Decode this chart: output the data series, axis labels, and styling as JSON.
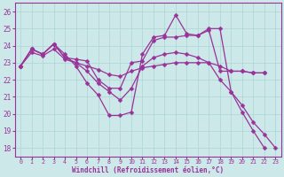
{
  "xlabel": "Windchill (Refroidissement éolien,°C)",
  "xlim": [
    -0.5,
    23.5
  ],
  "ylim": [
    17.5,
    26.5
  ],
  "xticks": [
    0,
    1,
    2,
    3,
    4,
    5,
    6,
    7,
    8,
    9,
    10,
    11,
    12,
    13,
    14,
    15,
    16,
    17,
    18,
    19,
    20,
    21,
    22,
    23
  ],
  "yticks": [
    18,
    19,
    20,
    21,
    22,
    23,
    24,
    25,
    26
  ],
  "bg_color": "#cce8e8",
  "grid_color": "#aad4d4",
  "line_color": "#993399",
  "marker": "D",
  "markersize": 2.5,
  "linewidth": 0.9,
  "series": [
    [
      22.8,
      23.8,
      23.5,
      24.1,
      23.5,
      22.8,
      21.8,
      21.1,
      19.9,
      19.9,
      20.1,
      23.5,
      24.5,
      24.6,
      25.8,
      24.7,
      24.6,
      25.0,
      25.0,
      21.3,
      20.1,
      19.0,
      18.0,
      null
    ],
    [
      22.8,
      23.8,
      23.5,
      24.1,
      23.3,
      23.2,
      23.1,
      22.0,
      21.5,
      21.5,
      23.0,
      23.1,
      24.3,
      24.5,
      24.5,
      24.6,
      24.6,
      24.9,
      22.5,
      22.5,
      22.5,
      22.4,
      22.4,
      null
    ],
    [
      22.8,
      23.6,
      23.4,
      23.8,
      23.2,
      23.0,
      22.8,
      22.6,
      22.3,
      22.2,
      22.5,
      22.7,
      22.8,
      22.9,
      23.0,
      23.0,
      23.0,
      23.0,
      22.8,
      22.5,
      22.5,
      22.4,
      22.4,
      null
    ],
    [
      22.8,
      23.8,
      23.5,
      24.1,
      23.3,
      23.0,
      22.5,
      21.8,
      21.3,
      20.8,
      21.5,
      22.8,
      23.3,
      23.5,
      23.6,
      23.5,
      23.3,
      23.0,
      22.0,
      21.3,
      20.5,
      19.5,
      18.8,
      18.0
    ]
  ],
  "font_family": "monospace"
}
